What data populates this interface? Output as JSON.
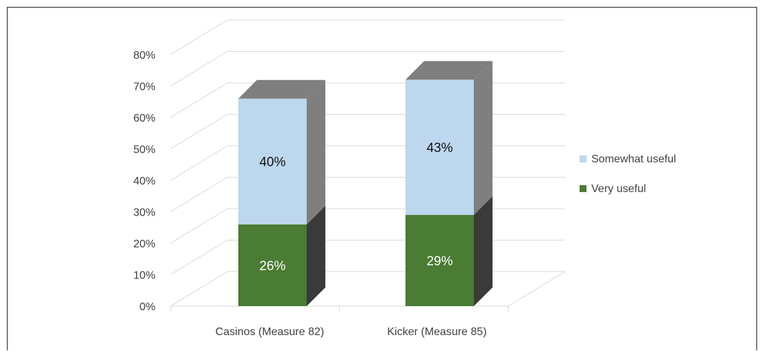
{
  "chart_data": {
    "type": "bar",
    "stacked": true,
    "style": "3d",
    "categories": [
      "Casinos (Measure 82)",
      "Kicker (Measure 85)"
    ],
    "series": [
      {
        "name": "Very useful",
        "values": [
          26,
          29
        ],
        "labels": [
          "26%",
          "29%"
        ],
        "color": "#4a7c34"
      },
      {
        "name": "Somewhat useful",
        "values": [
          40,
          43
        ],
        "labels": [
          "40%",
          "43%"
        ],
        "color": "#bdd7ee"
      }
    ],
    "yticks": [
      "0%",
      "10%",
      "20%",
      "30%",
      "40%",
      "50%",
      "60%",
      "70%",
      "80%"
    ],
    "ylim": [
      0,
      80
    ],
    "grid": true,
    "legend_position": "right",
    "colors": {
      "side_light": "#7f7f7f",
      "side_dark": "#3a3a3a",
      "grid": "#d9d9d9",
      "axis_text": "#404040"
    }
  }
}
